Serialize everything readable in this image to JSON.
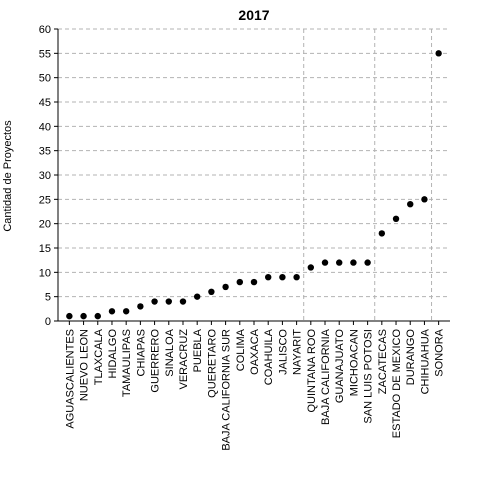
{
  "chart_data": {
    "type": "scatter",
    "title": "2017",
    "xlabel": "",
    "ylabel": "Cantidad de Proyectos",
    "ylim": [
      0,
      60
    ],
    "yticks": [
      0,
      5,
      10,
      15,
      20,
      25,
      30,
      35,
      40,
      45,
      50,
      55,
      60
    ],
    "grid": true,
    "categories": [
      "AGUASCALIENTES",
      "NUEVO LEON",
      "TLAXCALA",
      "HIDALGO",
      "TAMAULIPAS",
      "CHIAPAS",
      "GUERRERO",
      "SINALOA",
      "VERACRUZ",
      "PUEBLA",
      "QUERETARO",
      "BAJA CALIFORNIA SUR",
      "COLIMA",
      "OAXACA",
      "COAHUILA",
      "JALISCO",
      "NAYARIT",
      "QUINTANA ROO",
      "BAJA CALIFORNIA",
      "GUANAJUATO",
      "MICHOACAN",
      "SAN LUIS POTOSI",
      "ZACATECAS",
      "ESTADO DE MEXICO",
      "DURANGO",
      "CHIHUAHUA",
      "SONORA"
    ],
    "values": [
      1,
      1,
      1,
      2,
      2,
      3,
      4,
      4,
      4,
      5,
      6,
      7,
      8,
      8,
      9,
      9,
      9,
      11,
      12,
      12,
      12,
      12,
      18,
      21,
      24,
      25,
      55
    ],
    "vertical_gridlines_after": [
      "NAYARIT",
      "SAN LUIS POTOSI",
      "CHIHUAHUA"
    ],
    "point_color": "#000000",
    "grid_color": "#b3b3b3"
  }
}
